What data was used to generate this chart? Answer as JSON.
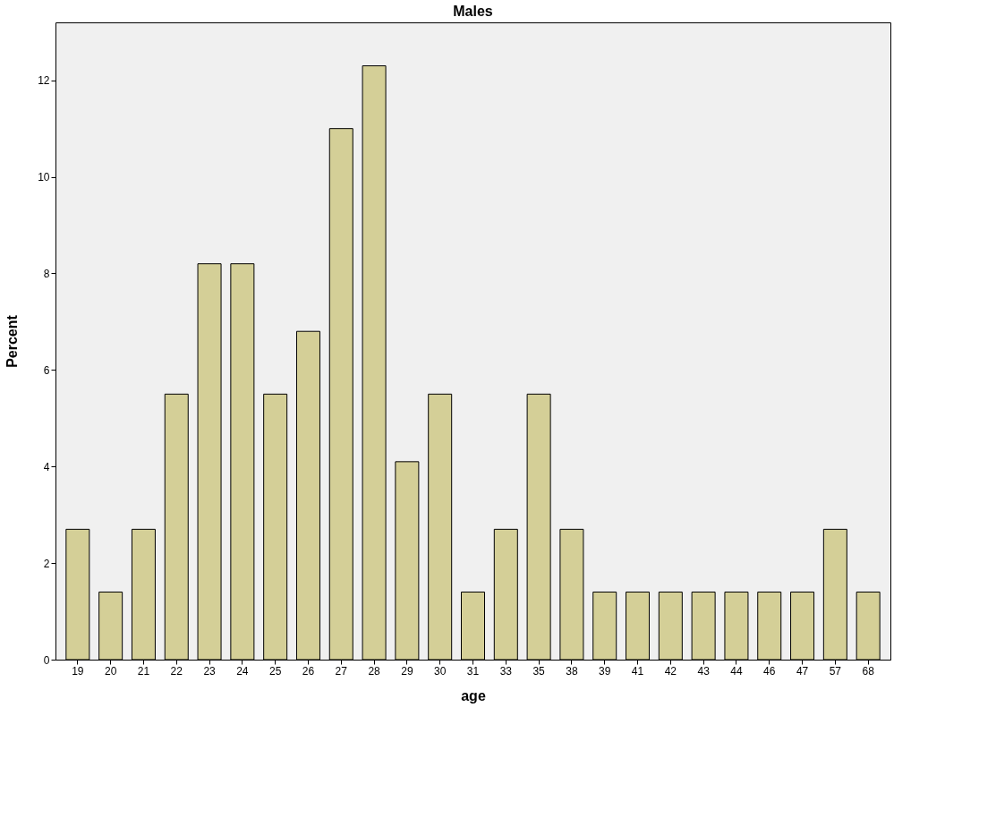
{
  "chart_data": {
    "type": "bar",
    "title": "Males",
    "xlabel": "age",
    "ylabel": "Percent",
    "categories": [
      "19",
      "20",
      "21",
      "22",
      "23",
      "24",
      "25",
      "26",
      "27",
      "28",
      "29",
      "30",
      "31",
      "33",
      "35",
      "38",
      "39",
      "41",
      "42",
      "43",
      "44",
      "46",
      "47",
      "57",
      "68"
    ],
    "values": [
      2.7,
      1.4,
      2.7,
      5.5,
      8.2,
      8.2,
      5.5,
      6.8,
      11.0,
      12.3,
      4.1,
      5.5,
      1.4,
      2.7,
      5.5,
      2.7,
      1.4,
      1.4,
      1.4,
      1.4,
      1.4,
      1.4,
      1.4,
      2.7,
      1.4
    ],
    "color": "#d4cf97",
    "ylim": [
      0,
      13.2
    ],
    "yticks": [
      0,
      2,
      4,
      6,
      8,
      10,
      12
    ],
    "grid": false
  }
}
